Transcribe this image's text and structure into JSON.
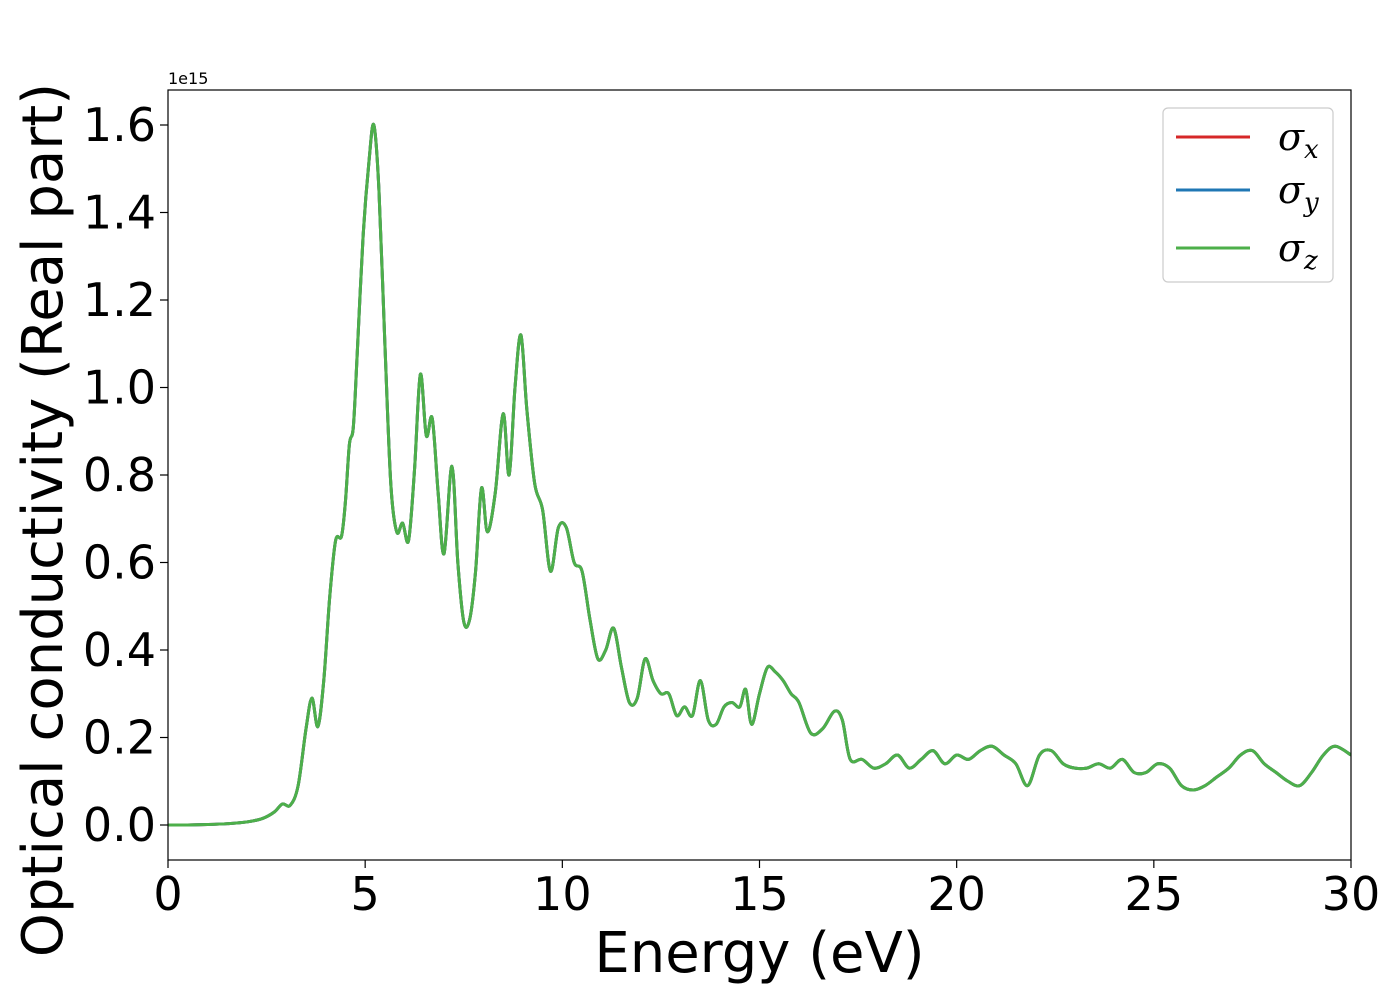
{
  "chart_data": {
    "type": "line",
    "xlabel": "Energy (eV)",
    "ylabel": "Optical conductivity (Real part)",
    "y_offset_text": "1e15",
    "xlim": [
      0,
      30
    ],
    "ylim": [
      -0.08,
      1.68
    ],
    "x_ticks": [
      0,
      5,
      10,
      15,
      20,
      25,
      30
    ],
    "x_tick_labels": [
      "0",
      "5",
      "10",
      "15",
      "20",
      "25",
      "30"
    ],
    "y_ticks": [
      0.0,
      0.2,
      0.4,
      0.6,
      0.8,
      1.0,
      1.2,
      1.4,
      1.6
    ],
    "y_tick_labels": [
      "0.0",
      "0.2",
      "0.4",
      "0.6",
      "0.8",
      "1.0",
      "1.2",
      "1.4",
      "1.6"
    ],
    "grid": false,
    "legend_position": "top-right",
    "series": [
      {
        "name": "σx",
        "legend_symbol": "σ",
        "legend_sub": "x",
        "color": "#d62728"
      },
      {
        "name": "σy",
        "legend_symbol": "σ",
        "legend_sub": "y",
        "color": "#1f77b4"
      },
      {
        "name": "σz",
        "legend_symbol": "σ",
        "legend_sub": "z",
        "color": "#4daf4a"
      }
    ],
    "x": [
      0,
      0.5,
      1.0,
      1.5,
      2.0,
      2.4,
      2.7,
      2.9,
      3.1,
      3.3,
      3.5,
      3.65,
      3.8,
      3.95,
      4.1,
      4.25,
      4.4,
      4.5,
      4.6,
      4.7,
      4.8,
      4.95,
      5.1,
      5.22,
      5.35,
      5.5,
      5.65,
      5.8,
      5.95,
      6.1,
      6.25,
      6.4,
      6.55,
      6.7,
      6.85,
      7.0,
      7.2,
      7.35,
      7.5,
      7.65,
      7.8,
      7.95,
      8.1,
      8.3,
      8.5,
      8.65,
      8.8,
      8.95,
      9.1,
      9.3,
      9.5,
      9.7,
      9.9,
      10.1,
      10.3,
      10.5,
      10.7,
      10.9,
      11.1,
      11.3,
      11.5,
      11.7,
      11.9,
      12.1,
      12.3,
      12.5,
      12.7,
      12.9,
      13.1,
      13.3,
      13.5,
      13.7,
      13.9,
      14.1,
      14.3,
      14.5,
      14.65,
      14.8,
      15.0,
      15.2,
      15.4,
      15.6,
      15.8,
      16.0,
      16.3,
      16.6,
      16.9,
      17.1,
      17.3,
      17.6,
      17.9,
      18.2,
      18.5,
      18.8,
      19.1,
      19.4,
      19.7,
      20.0,
      20.3,
      20.6,
      20.9,
      21.2,
      21.5,
      21.8,
      22.1,
      22.4,
      22.7,
      23.0,
      23.3,
      23.6,
      23.9,
      24.2,
      24.5,
      24.8,
      25.1,
      25.4,
      25.7,
      26.0,
      26.3,
      26.6,
      26.9,
      27.2,
      27.5,
      27.8,
      28.1,
      28.4,
      28.7,
      29.0,
      29.3,
      29.6,
      30.0
    ],
    "y": [
      0.0,
      0.0,
      0.001,
      0.003,
      0.007,
      0.015,
      0.03,
      0.048,
      0.045,
      0.09,
      0.22,
      0.29,
      0.225,
      0.33,
      0.52,
      0.65,
      0.66,
      0.74,
      0.87,
      0.91,
      1.08,
      1.35,
      1.52,
      1.6,
      1.45,
      1.1,
      0.78,
      0.67,
      0.69,
      0.65,
      0.81,
      1.03,
      0.89,
      0.93,
      0.76,
      0.62,
      0.82,
      0.6,
      0.465,
      0.47,
      0.58,
      0.77,
      0.67,
      0.76,
      0.94,
      0.8,
      1.0,
      1.12,
      0.95,
      0.78,
      0.72,
      0.58,
      0.68,
      0.68,
      0.6,
      0.58,
      0.47,
      0.38,
      0.4,
      0.45,
      0.36,
      0.28,
      0.29,
      0.38,
      0.33,
      0.3,
      0.3,
      0.25,
      0.27,
      0.25,
      0.33,
      0.24,
      0.23,
      0.27,
      0.28,
      0.27,
      0.31,
      0.23,
      0.3,
      0.36,
      0.35,
      0.33,
      0.3,
      0.28,
      0.21,
      0.22,
      0.26,
      0.24,
      0.15,
      0.15,
      0.13,
      0.14,
      0.16,
      0.13,
      0.15,
      0.17,
      0.14,
      0.16,
      0.15,
      0.17,
      0.18,
      0.16,
      0.14,
      0.09,
      0.16,
      0.17,
      0.14,
      0.13,
      0.13,
      0.14,
      0.13,
      0.15,
      0.12,
      0.12,
      0.14,
      0.13,
      0.09,
      0.08,
      0.09,
      0.11,
      0.13,
      0.16,
      0.17,
      0.14,
      0.12,
      0.1,
      0.09,
      0.12,
      0.16,
      0.18,
      0.16
    ]
  }
}
